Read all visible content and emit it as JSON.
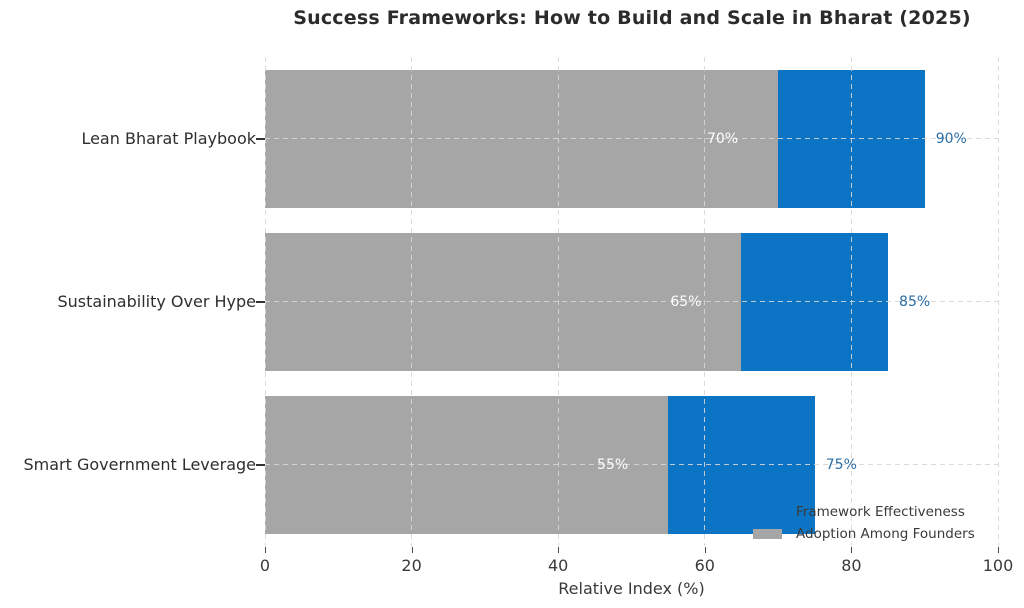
{
  "chart_data": {
    "type": "bar",
    "orientation": "horizontal",
    "title": "Success Frameworks: How to Build and Scale in Bharat (2025)",
    "xlabel": "Relative Index (%)",
    "xlim": [
      0,
      100
    ],
    "xticks": [
      "0",
      "20",
      "40",
      "60",
      "80",
      "100"
    ],
    "xtick_values": [
      0,
      20,
      40,
      60,
      80,
      100
    ],
    "categories": [
      "Lean Bharat Playbook",
      "Sustainability Over Hype",
      "Smart Government Leverage"
    ],
    "series": [
      {
        "name": "Framework Effectiveness",
        "color": "#0b74c4",
        "values": [
          90,
          85,
          75
        ],
        "value_labels": [
          "90%",
          "85%",
          "75%"
        ],
        "label_placement": "outside"
      },
      {
        "name": "Adoption Among Founders",
        "color": "#a6a6a6",
        "values": [
          70,
          65,
          55
        ],
        "value_labels": [
          "70%",
          "65%",
          "55%"
        ],
        "label_placement": "inside"
      }
    ],
    "grid": {
      "style": "dashed",
      "x": true,
      "y": true,
      "color": "#d6d6d6",
      "above_bars": true
    },
    "legend": {
      "position": "lower right",
      "frame": false
    },
    "colors": {
      "inside_label": "#ffffff",
      "outside_label": "#2a6ea6",
      "title": "#2b2b2b"
    }
  }
}
